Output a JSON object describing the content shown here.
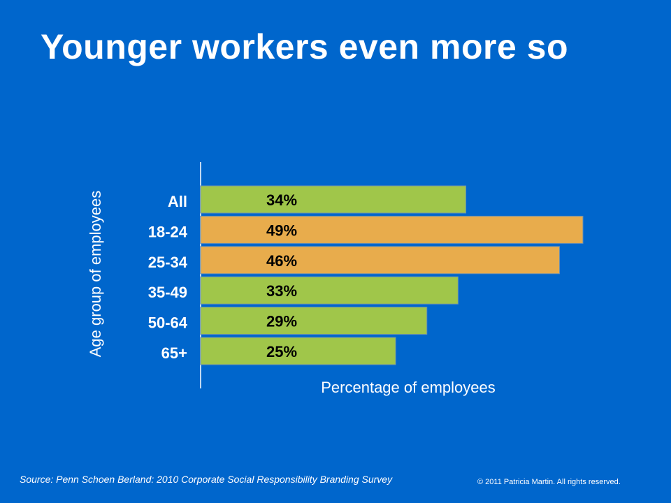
{
  "slide": {
    "title": "Younger workers even more so",
    "source": "Source: Penn Schoen Berland: 2010 Corporate Social Responsibility Branding Survey",
    "copyright": "© 2011 Patricia Martin.  All rights reserved."
  },
  "colors": {
    "background": "#0066cc",
    "bar_green": "#a0c64a",
    "bar_orange": "#e8ac4c",
    "text": "#ffffff"
  },
  "chart_data": {
    "type": "bar",
    "orientation": "horizontal",
    "categories": [
      "All",
      "18-24",
      "25-34",
      "35-49",
      "50-64",
      "65+"
    ],
    "values": [
      34,
      49,
      46,
      33,
      29,
      25
    ],
    "data_labels": [
      "34%",
      "49%",
      "46%",
      "33%",
      "29%",
      "25%"
    ],
    "bar_colors": [
      "#a0c64a",
      "#e8ac4c",
      "#e8ac4c",
      "#a0c64a",
      "#a0c64a",
      "#a0c64a"
    ],
    "xlabel": "Percentage of employees",
    "ylabel": "Age group of employees",
    "xlim": [
      0,
      50
    ],
    "grid": false,
    "legend": false
  }
}
